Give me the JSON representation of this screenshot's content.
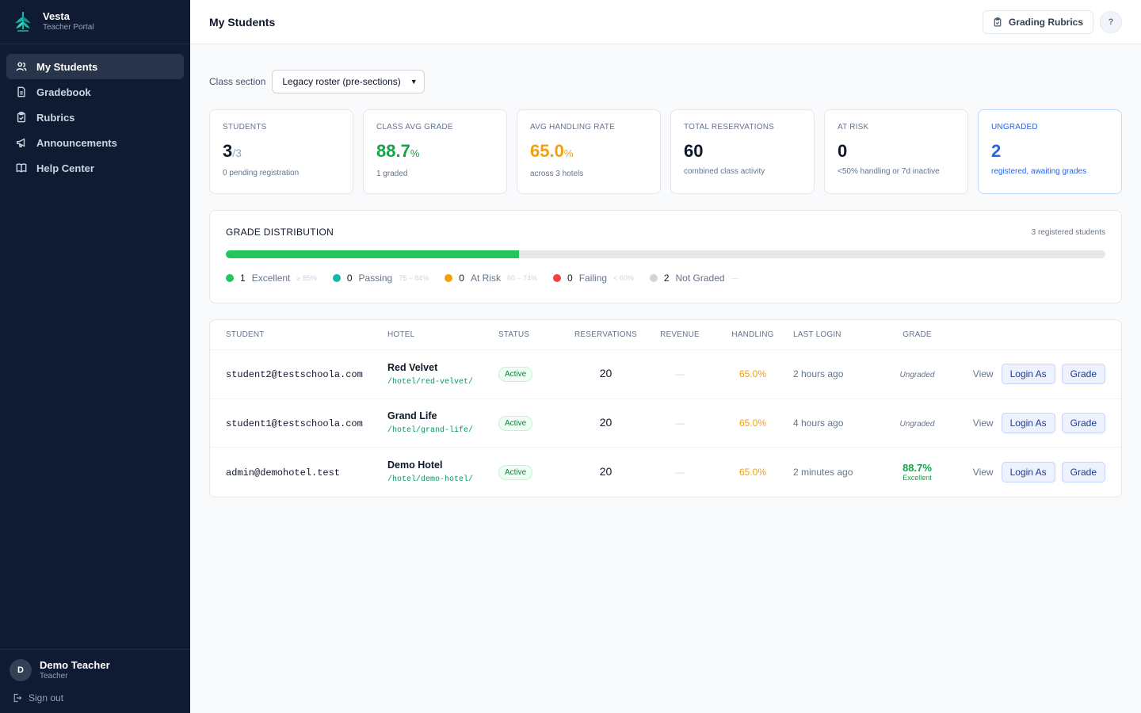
{
  "brand": {
    "name": "Vesta",
    "subtitle": "Teacher Portal"
  },
  "sidebar": {
    "items": [
      {
        "label": "My Students",
        "icon": "users-icon",
        "active": true
      },
      {
        "label": "Gradebook",
        "icon": "document-icon",
        "active": false
      },
      {
        "label": "Rubrics",
        "icon": "clipboard-icon",
        "active": false
      },
      {
        "label": "Announcements",
        "icon": "megaphone-icon",
        "active": false
      },
      {
        "label": "Help Center",
        "icon": "book-icon",
        "active": false
      }
    ],
    "user": {
      "initial": "D",
      "name": "Demo Teacher",
      "role": "Teacher"
    },
    "signout": "Sign out"
  },
  "header": {
    "title": "My Students",
    "rubrics_button": "Grading Rubrics",
    "help_button": "?"
  },
  "section": {
    "label": "Class section",
    "selected": "Legacy roster (pre-sections)"
  },
  "stats": [
    {
      "label": "STUDENTS",
      "value": "3",
      "suffix": "/3",
      "sub": "0 pending registration"
    },
    {
      "label": "CLASS AVG GRADE",
      "value": "88.7",
      "suffix": "%",
      "sub": "1 graded"
    },
    {
      "label": "AVG HANDLING RATE",
      "value": "65.0",
      "suffix": "%",
      "sub": "across 3 hotels"
    },
    {
      "label": "TOTAL RESERVATIONS",
      "value": "60",
      "suffix": "",
      "sub": "combined class activity"
    },
    {
      "label": "AT RISK",
      "value": "0",
      "suffix": "",
      "sub": "<50% handling or 7d inactive"
    },
    {
      "label": "UNGRADED",
      "value": "2",
      "suffix": "",
      "sub": "registered, awaiting grades"
    }
  ],
  "distribution": {
    "title": "GRADE DISTRIBUTION",
    "count_text": "3 registered students",
    "total": 3,
    "colors": {
      "excellent": "#22c55e",
      "passing": "#14b8a6",
      "at_risk": "#f59e0b",
      "failing": "#ef4444",
      "not_graded": "#d1d5db",
      "track": "#e5e7eb"
    },
    "buckets": [
      {
        "count": "1",
        "label": "Excellent",
        "range": "≥ 85%",
        "color": "#22c55e"
      },
      {
        "count": "0",
        "label": "Passing",
        "range": "75 – 84%",
        "color": "#14b8a6"
      },
      {
        "count": "0",
        "label": "At Risk",
        "range": "60 – 74%",
        "color": "#f59e0b"
      },
      {
        "count": "0",
        "label": "Failing",
        "range": "< 60%",
        "color": "#ef4444"
      },
      {
        "count": "2",
        "label": "Not Graded",
        "range": "—",
        "color": "#d1d5db"
      }
    ]
  },
  "table": {
    "columns": [
      "STUDENT",
      "HOTEL",
      "STATUS",
      "RESERVATIONS",
      "REVENUE",
      "HANDLING",
      "LAST LOGIN",
      "GRADE"
    ],
    "rows": [
      {
        "email": "student2@testschoola.com",
        "hotel": "Red Velvet",
        "path": "/hotel/red-velvet/",
        "status": "Active",
        "reservations": "20",
        "revenue": "—",
        "handling": "65.0%",
        "last_login": "2 hours ago",
        "grade": "Ungraded",
        "grade_sub": "",
        "graded": false
      },
      {
        "email": "student1@testschoola.com",
        "hotel": "Grand Life",
        "path": "/hotel/grand-life/",
        "status": "Active",
        "reservations": "20",
        "revenue": "—",
        "handling": "65.0%",
        "last_login": "4 hours ago",
        "grade": "Ungraded",
        "grade_sub": "",
        "graded": false
      },
      {
        "email": "admin@demohotel.test",
        "hotel": "Demo Hotel",
        "path": "/hotel/demo-hotel/",
        "status": "Active",
        "reservations": "20",
        "revenue": "—",
        "handling": "65.0%",
        "last_login": "2 minutes ago",
        "grade": "88.7%",
        "grade_sub": "Excellent",
        "graded": true
      }
    ],
    "actions": {
      "view": "View",
      "login_as": "Login As",
      "grade": "Grade"
    }
  }
}
